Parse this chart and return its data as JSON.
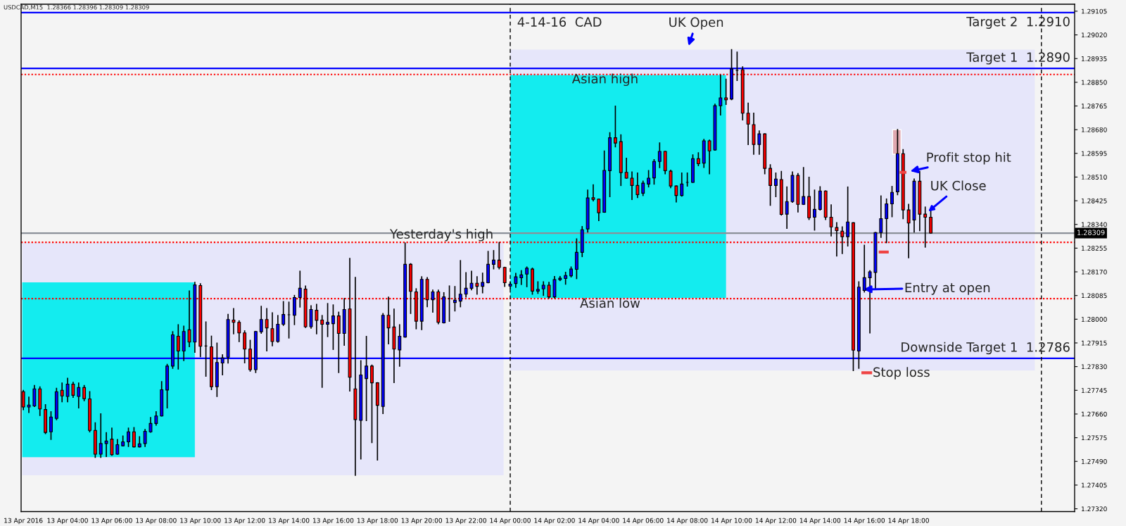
{
  "chart_data": {
    "type": "candlestick",
    "xlim": [
      "2016-04-13T01:54",
      "2016-04-15T01:30"
    ],
    "ylim": [
      1.2731,
      1.2913
    ],
    "xticks": [
      {
        "value": "2016-04-13T02:00",
        "label": "13 Apr 2016"
      },
      {
        "value": "2016-04-13T04:00",
        "label": "13 Apr 04:00"
      },
      {
        "value": "2016-04-13T06:00",
        "label": "13 Apr 06:00"
      },
      {
        "value": "2016-04-13T08:00",
        "label": "13 Apr 08:00"
      },
      {
        "value": "2016-04-13T10:00",
        "label": "13 Apr 10:00"
      },
      {
        "value": "2016-04-13T12:00",
        "label": "13 Apr 12:00"
      },
      {
        "value": "2016-04-13T14:00",
        "label": "13 Apr 14:00"
      },
      {
        "value": "2016-04-13T16:00",
        "label": "13 Apr 16:00"
      },
      {
        "value": "2016-04-13T18:00",
        "label": "13 Apr 18:00"
      },
      {
        "value": "2016-04-13T20:00",
        "label": "13 Apr 20:00"
      },
      {
        "value": "2016-04-13T22:00",
        "label": "13 Apr 22:00"
      },
      {
        "value": "2016-04-14T00:00",
        "label": "14 Apr 00:00"
      },
      {
        "value": "2016-04-14T02:00",
        "label": "14 Apr 02:00"
      },
      {
        "value": "2016-04-14T04:00",
        "label": "14 Apr 04:00"
      },
      {
        "value": "2016-04-14T06:00",
        "label": "14 Apr 06:00"
      },
      {
        "value": "2016-04-14T08:00",
        "label": "14 Apr 08:00"
      },
      {
        "value": "2016-04-14T10:00",
        "label": "14 Apr 10:00"
      },
      {
        "value": "2016-04-14T12:00",
        "label": "14 Apr 12:00"
      },
      {
        "value": "2016-04-14T14:00",
        "label": "14 Apr 14:00"
      },
      {
        "value": "2016-04-14T16:00",
        "label": "14 Apr 16:00"
      },
      {
        "value": "2016-04-14T18:00",
        "label": "14 Apr 18:00"
      }
    ],
    "yticks": [
      {
        "value": 1.2732,
        "label": "1.27320"
      },
      {
        "value": 1.27405,
        "label": "1.27405"
      },
      {
        "value": 1.2749,
        "label": "1.27490"
      },
      {
        "value": 1.27575,
        "label": "1.27575"
      },
      {
        "value": 1.2766,
        "label": "1.27660"
      },
      {
        "value": 1.27745,
        "label": "1.27745"
      },
      {
        "value": 1.2783,
        "label": "1.27830"
      },
      {
        "value": 1.27915,
        "label": "1.27915"
      },
      {
        "value": 1.28,
        "label": "1.28000"
      },
      {
        "value": 1.28085,
        "label": "1.28085"
      },
      {
        "value": 1.2817,
        "label": "1.28170"
      },
      {
        "value": 1.28255,
        "label": "1.28255"
      },
      {
        "value": 1.2834,
        "label": "1.28340"
      },
      {
        "value": 1.28425,
        "label": "1.28425"
      },
      {
        "value": 1.2851,
        "label": "1.28510"
      },
      {
        "value": 1.28595,
        "label": "1.28595"
      },
      {
        "value": 1.2868,
        "label": "1.28680"
      },
      {
        "value": 1.28765,
        "label": "1.28765"
      },
      {
        "value": 1.2885,
        "label": "1.28850"
      },
      {
        "value": 1.28935,
        "label": "1.28935"
      },
      {
        "value": 1.2902,
        "label": "1.29020"
      },
      {
        "value": 1.29105,
        "label": "1.29105"
      }
    ],
    "series": [
      {
        "x": [
          "2016-04-13T02:00",
          "2016-04-13T02:15",
          "2016-04-13T02:30",
          "2016-04-13T02:45",
          "2016-04-13T03:00",
          "2016-04-13T03:15",
          "2016-04-13T03:30",
          "2016-04-13T03:45",
          "2016-04-13T04:00",
          "2016-04-13T04:15",
          "2016-04-13T04:30",
          "2016-04-13T04:45",
          "2016-04-13T05:00",
          "2016-04-13T05:15",
          "2016-04-13T05:30",
          "2016-04-13T05:45",
          "2016-04-13T06:00",
          "2016-04-13T06:15",
          "2016-04-13T06:30",
          "2016-04-13T06:45",
          "2016-04-13T07:00",
          "2016-04-13T07:15",
          "2016-04-13T07:30",
          "2016-04-13T07:45",
          "2016-04-13T08:00",
          "2016-04-13T08:15",
          "2016-04-13T08:30",
          "2016-04-13T08:45",
          "2016-04-13T09:00",
          "2016-04-13T09:15",
          "2016-04-13T09:30",
          "2016-04-13T09:45",
          "2016-04-13T10:00",
          "2016-04-13T10:15",
          "2016-04-13T10:30",
          "2016-04-13T10:45",
          "2016-04-13T11:00",
          "2016-04-13T11:15",
          "2016-04-13T11:30",
          "2016-04-13T11:45",
          "2016-04-13T12:00",
          "2016-04-13T12:15",
          "2016-04-13T12:30",
          "2016-04-13T12:45",
          "2016-04-13T13:00",
          "2016-04-13T13:15",
          "2016-04-13T13:30",
          "2016-04-13T13:45",
          "2016-04-13T14:00",
          "2016-04-13T14:15",
          "2016-04-13T14:30",
          "2016-04-13T14:45",
          "2016-04-13T15:00",
          "2016-04-13T15:15",
          "2016-04-13T15:30",
          "2016-04-13T15:45",
          "2016-04-13T16:00",
          "2016-04-13T16:15",
          "2016-04-13T16:30",
          "2016-04-13T16:45",
          "2016-04-13T17:00",
          "2016-04-13T17:15",
          "2016-04-13T17:30",
          "2016-04-13T17:45",
          "2016-04-13T18:00",
          "2016-04-13T18:15",
          "2016-04-13T18:30",
          "2016-04-13T18:45",
          "2016-04-13T19:00",
          "2016-04-13T19:15",
          "2016-04-13T19:30",
          "2016-04-13T19:45",
          "2016-04-13T20:00",
          "2016-04-13T20:15",
          "2016-04-13T20:30",
          "2016-04-13T20:45",
          "2016-04-13T21:00",
          "2016-04-13T21:15",
          "2016-04-13T21:30",
          "2016-04-13T21:45",
          "2016-04-13T22:00",
          "2016-04-13T22:15",
          "2016-04-13T22:30",
          "2016-04-13T22:45",
          "2016-04-13T23:00",
          "2016-04-13T23:15",
          "2016-04-13T23:30",
          "2016-04-13T23:45",
          "2016-04-14T00:00",
          "2016-04-14T00:15",
          "2016-04-14T00:30",
          "2016-04-14T00:45",
          "2016-04-14T01:00",
          "2016-04-14T01:15",
          "2016-04-14T01:30",
          "2016-04-14T01:45",
          "2016-04-14T02:00",
          "2016-04-14T02:15",
          "2016-04-14T02:30",
          "2016-04-14T02:45",
          "2016-04-14T03:00",
          "2016-04-14T03:15",
          "2016-04-14T03:30",
          "2016-04-14T03:45",
          "2016-04-14T04:00",
          "2016-04-14T04:15",
          "2016-04-14T04:30",
          "2016-04-14T04:45",
          "2016-04-14T05:00",
          "2016-04-14T05:15",
          "2016-04-14T05:30",
          "2016-04-14T05:45",
          "2016-04-14T06:00",
          "2016-04-14T06:15",
          "2016-04-14T06:30",
          "2016-04-14T06:45",
          "2016-04-14T07:00",
          "2016-04-14T07:15",
          "2016-04-14T07:30",
          "2016-04-14T07:45",
          "2016-04-14T08:00",
          "2016-04-14T08:15",
          "2016-04-14T08:30",
          "2016-04-14T08:45",
          "2016-04-14T09:00",
          "2016-04-14T09:15",
          "2016-04-14T09:30",
          "2016-04-14T09:45",
          "2016-04-14T10:00",
          "2016-04-14T10:15",
          "2016-04-14T10:30",
          "2016-04-14T10:45",
          "2016-04-14T11:00",
          "2016-04-14T11:15",
          "2016-04-14T11:30",
          "2016-04-14T11:45",
          "2016-04-14T12:00",
          "2016-04-14T12:15",
          "2016-04-14T12:30",
          "2016-04-14T12:45",
          "2016-04-14T13:00",
          "2016-04-14T13:15",
          "2016-04-14T13:30",
          "2016-04-14T13:45",
          "2016-04-14T14:00",
          "2016-04-14T14:15",
          "2016-04-14T14:30",
          "2016-04-14T14:45",
          "2016-04-14T15:00",
          "2016-04-14T15:15",
          "2016-04-14T15:30",
          "2016-04-14T15:45",
          "2016-04-14T16:00",
          "2016-04-14T16:15",
          "2016-04-14T16:30",
          "2016-04-14T16:45",
          "2016-04-14T17:00",
          "2016-04-14T17:15",
          "2016-04-14T17:30",
          "2016-04-14T17:45",
          "2016-04-14T18:00",
          "2016-04-14T18:15",
          "2016-04-14T18:30",
          "2016-04-14T18:45",
          "2016-04-14T19:00"
        ],
        "ohlc": [
          [
            1.2774,
            1.27744,
            1.27676,
            1.27685
          ],
          [
            1.27685,
            1.2772,
            1.27666,
            1.27692
          ],
          [
            1.27689,
            1.27762,
            1.27687,
            1.2775
          ],
          [
            1.2775,
            1.27757,
            1.27655,
            1.27678
          ],
          [
            1.27676,
            1.27693,
            1.2759,
            1.27594
          ],
          [
            1.27596,
            1.27668,
            1.27569,
            1.27649
          ],
          [
            1.27644,
            1.27752,
            1.2764,
            1.2774
          ],
          [
            1.27745,
            1.27771,
            1.27704,
            1.27725
          ],
          [
            1.27723,
            1.27788,
            1.27704,
            1.27767
          ],
          [
            1.27767,
            1.27773,
            1.2772,
            1.27727
          ],
          [
            1.27723,
            1.27771,
            1.27682,
            1.27755
          ],
          [
            1.27755,
            1.27762,
            1.27708,
            1.27715
          ],
          [
            1.27714,
            1.2774,
            1.27596,
            1.27601
          ],
          [
            1.27601,
            1.27628,
            1.27505,
            1.27516
          ],
          [
            1.27516,
            1.2766,
            1.27505,
            1.27554
          ],
          [
            1.27554,
            1.27593,
            1.27508,
            1.27563
          ],
          [
            1.2757,
            1.27609,
            1.27512,
            1.27514
          ],
          [
            1.27516,
            1.27568,
            1.27516,
            1.2755
          ],
          [
            1.27546,
            1.27581,
            1.27546,
            1.2756
          ],
          [
            1.2756,
            1.27609,
            1.27544,
            1.27596
          ],
          [
            1.27596,
            1.27611,
            1.27542,
            1.27542
          ],
          [
            1.27542,
            1.27578,
            1.27542,
            1.27553
          ],
          [
            1.27554,
            1.27604,
            1.27544,
            1.27598
          ],
          [
            1.27596,
            1.27647,
            1.27595,
            1.27626
          ],
          [
            1.27626,
            1.27668,
            1.2762,
            1.27653
          ],
          [
            1.27653,
            1.27776,
            1.27653,
            1.27747
          ],
          [
            1.27746,
            1.27838,
            1.27682,
            1.27832
          ],
          [
            1.27832,
            1.27955,
            1.27824,
            1.27944
          ],
          [
            1.27939,
            1.2798,
            1.27822,
            1.27886
          ],
          [
            1.27886,
            1.27975,
            1.27852,
            1.27956
          ],
          [
            1.27962,
            1.28101,
            1.27902,
            1.27918
          ],
          [
            1.27918,
            1.28132,
            1.27882,
            1.28123
          ],
          [
            1.28121,
            1.28127,
            1.27866,
            1.27903
          ],
          [
            1.27904,
            1.2799,
            1.27796,
            1.27904
          ],
          [
            1.27901,
            1.27939,
            1.27748,
            1.27758
          ],
          [
            1.27758,
            1.27914,
            1.27723,
            1.27845
          ],
          [
            1.27843,
            1.27872,
            1.27801,
            1.27861
          ],
          [
            1.27864,
            1.28017,
            1.27843,
            1.27999
          ],
          [
            1.27997,
            1.28038,
            1.27948,
            1.27989
          ],
          [
            1.27989,
            1.27994,
            1.2792,
            1.27951
          ],
          [
            1.27951,
            1.27958,
            1.27844,
            1.27893
          ],
          [
            1.27893,
            1.27924,
            1.27814,
            1.27819
          ],
          [
            1.27819,
            1.27956,
            1.27809,
            1.27956
          ],
          [
            1.27955,
            1.28046,
            1.2795,
            1.27999
          ],
          [
            1.27999,
            1.28038,
            1.27887,
            1.27969
          ],
          [
            1.27966,
            1.28023,
            1.27905,
            1.2792
          ],
          [
            1.2792,
            1.28013,
            1.27918,
            1.27982
          ],
          [
            1.27982,
            1.28063,
            1.27978,
            1.28017
          ],
          [
            1.28016,
            1.28061,
            1.27933,
            1.28016
          ],
          [
            1.28014,
            1.28085,
            1.27981,
            1.28078
          ],
          [
            1.28078,
            1.28172,
            1.28044,
            1.28111
          ],
          [
            1.28108,
            1.28119,
            1.27971,
            1.27973
          ],
          [
            1.27973,
            1.28048,
            1.27968,
            1.28035
          ],
          [
            1.28032,
            1.28053,
            1.27948,
            1.27996
          ],
          [
            1.27997,
            1.28013,
            1.27756,
            1.27982
          ],
          [
            1.27982,
            1.28056,
            1.27938,
            1.27989
          ],
          [
            1.27984,
            1.28051,
            1.27892,
            1.28012
          ],
          [
            1.28012,
            1.28025,
            1.27809,
            1.27949
          ],
          [
            1.27949,
            1.28074,
            1.27907,
            1.28035
          ],
          [
            1.28037,
            1.28218,
            1.27743,
            1.27792
          ],
          [
            1.2775,
            1.2815,
            1.2744,
            1.2764
          ],
          [
            1.27637,
            1.27851,
            1.27499,
            1.278
          ],
          [
            1.27787,
            1.27938,
            1.27637,
            1.27832
          ],
          [
            1.27832,
            1.27835,
            1.27558,
            1.27772
          ],
          [
            1.27772,
            1.27772,
            1.27495,
            1.27691
          ],
          [
            1.27687,
            1.2802,
            1.27662,
            1.28014
          ],
          [
            1.28014,
            1.28079,
            1.27912,
            1.27969
          ],
          [
            1.27972,
            1.28036,
            1.27773,
            1.27893
          ],
          [
            1.2789,
            1.2798,
            1.27832,
            1.27939
          ],
          [
            1.27936,
            1.28273,
            1.27936,
            1.28197
          ],
          [
            1.28197,
            1.28199,
            1.28021,
            1.281
          ],
          [
            1.28098,
            1.28109,
            1.27966,
            1.27993
          ],
          [
            1.27993,
            1.28152,
            1.27963,
            1.28143
          ],
          [
            1.28143,
            1.28149,
            1.28045,
            1.2807
          ],
          [
            1.2807,
            1.28104,
            1.28026,
            1.28098
          ],
          [
            1.28098,
            1.28104,
            1.27984,
            1.27989
          ],
          [
            1.27987,
            1.28095,
            1.27987,
            1.2808
          ],
          [
            1.28074,
            1.28119,
            1.27993,
            1.28074
          ],
          [
            1.2806,
            1.28117,
            1.2803,
            1.28068
          ],
          [
            1.28065,
            1.2821,
            1.28045,
            1.2809
          ],
          [
            1.2809,
            1.28167,
            1.2808,
            1.28111
          ],
          [
            1.28111,
            1.28172,
            1.28106,
            1.28129
          ],
          [
            1.28129,
            1.28152,
            1.2809,
            1.28118
          ],
          [
            1.28118,
            1.28165,
            1.28095,
            1.28132
          ],
          [
            1.28131,
            1.28243,
            1.28131,
            1.28197
          ],
          [
            1.28197,
            1.28246,
            1.28181,
            1.28212
          ],
          [
            1.28212,
            1.28275,
            1.28181,
            1.28186
          ],
          [
            1.28186,
            1.28186,
            1.28118,
            1.28131
          ],
          [
            1.28119,
            1.28134,
            1.28111,
            1.28126
          ],
          [
            1.28128,
            1.28164,
            1.28115,
            1.28152
          ],
          [
            1.28149,
            1.28174,
            1.28125,
            1.28159
          ],
          [
            1.28162,
            1.28187,
            1.28117,
            1.28183
          ],
          [
            1.2818,
            1.28183,
            1.2809,
            1.28101
          ],
          [
            1.28101,
            1.28134,
            1.28093,
            1.28107
          ],
          [
            1.28109,
            1.28134,
            1.28086,
            1.28122
          ],
          [
            1.28122,
            1.28132,
            1.28076,
            1.2808
          ],
          [
            1.2808,
            1.28153,
            1.28077,
            1.28142
          ],
          [
            1.28142,
            1.28153,
            1.28139,
            1.28147
          ],
          [
            1.28146,
            1.28168,
            1.28126,
            1.28157
          ],
          [
            1.28156,
            1.28187,
            1.28152,
            1.2818
          ],
          [
            1.28179,
            1.28288,
            1.28146,
            1.2824
          ],
          [
            1.2824,
            1.28332,
            1.28225,
            1.28321
          ],
          [
            1.28324,
            1.28463,
            1.28313,
            1.28435
          ],
          [
            1.28436,
            1.28482,
            1.28425,
            1.2843
          ],
          [
            1.28431,
            1.28431,
            1.28354,
            1.28382
          ],
          [
            1.28384,
            1.28603,
            1.28384,
            1.28534
          ],
          [
            1.28533,
            1.28669,
            1.2844,
            1.28651
          ],
          [
            1.28651,
            1.28764,
            1.28619,
            1.28632
          ],
          [
            1.28637,
            1.28661,
            1.2848,
            1.28526
          ],
          [
            1.28527,
            1.28577,
            1.28506,
            1.28506
          ],
          [
            1.28506,
            1.28528,
            1.2843,
            1.2848
          ],
          [
            1.2848,
            1.28524,
            1.28437,
            1.28447
          ],
          [
            1.28452,
            1.28495,
            1.28444,
            1.28488
          ],
          [
            1.28485,
            1.28533,
            1.28475,
            1.28506
          ],
          [
            1.28507,
            1.28572,
            1.28485,
            1.28566
          ],
          [
            1.28566,
            1.28632,
            1.28544,
            1.28602
          ],
          [
            1.28602,
            1.28602,
            1.28522,
            1.28533
          ],
          [
            1.28531,
            1.28534,
            1.28472,
            1.28478
          ],
          [
            1.28478,
            1.28478,
            1.28421,
            1.28444
          ],
          [
            1.28444,
            1.28524,
            1.28442,
            1.28485
          ],
          [
            1.28491,
            1.28524,
            1.28478,
            1.28491
          ],
          [
            1.28491,
            1.28589,
            1.28491,
            1.28576
          ],
          [
            1.28576,
            1.28597,
            1.28551,
            1.28558
          ],
          [
            1.2856,
            1.28645,
            1.28545,
            1.2864
          ],
          [
            1.2864,
            1.28642,
            1.28522,
            1.28604
          ],
          [
            1.28607,
            1.28771,
            1.28607,
            1.28766
          ],
          [
            1.28766,
            1.28876,
            1.28733,
            1.28794
          ],
          [
            1.28794,
            1.28861,
            1.28771,
            1.28787
          ],
          [
            1.2879,
            1.28967,
            1.28788,
            1.28898
          ],
          [
            1.28893,
            1.28958,
            1.28857,
            1.28893
          ],
          [
            1.28895,
            1.28905,
            1.28715,
            1.28739
          ],
          [
            1.28739,
            1.28775,
            1.28627,
            1.287
          ],
          [
            1.28698,
            1.28739,
            1.28592,
            1.28627
          ],
          [
            1.28627,
            1.28675,
            1.28592,
            1.28665
          ],
          [
            1.28665,
            1.28665,
            1.28522,
            1.28541
          ],
          [
            1.28541,
            1.28554,
            1.28409,
            1.2848
          ],
          [
            1.2848,
            1.28524,
            1.2844,
            1.28503
          ],
          [
            1.28501,
            1.2853,
            1.28374,
            1.28376
          ],
          [
            1.28377,
            1.28474,
            1.28326,
            1.28422
          ],
          [
            1.28422,
            1.28528,
            1.2842,
            1.28516
          ],
          [
            1.28516,
            1.28522,
            1.28385,
            1.28412
          ],
          [
            1.28412,
            1.28544,
            1.28412,
            1.2844
          ],
          [
            1.2844,
            1.28509,
            1.28358,
            1.28364
          ],
          [
            1.28366,
            1.28463,
            1.2832,
            1.28394
          ],
          [
            1.28394,
            1.28475,
            1.28392,
            1.2846
          ],
          [
            1.2846,
            1.2846,
            1.28358,
            1.28366
          ],
          [
            1.28366,
            1.2841,
            1.28299,
            1.28331
          ],
          [
            1.28329,
            1.28346,
            1.28227,
            1.28318
          ],
          [
            1.28316,
            1.28331,
            1.28236,
            1.28296
          ],
          [
            1.28296,
            1.28474,
            1.28263,
            1.28349
          ],
          [
            1.28346,
            1.28346,
            1.27816,
            1.27889
          ],
          [
            1.27886,
            1.28134,
            1.27824,
            1.28115
          ],
          [
            1.28103,
            1.28265,
            1.28098,
            1.28149
          ],
          [
            1.28149,
            1.28174,
            1.27951,
            1.2817
          ],
          [
            1.28168,
            1.28311,
            1.28111,
            1.28311
          ],
          [
            1.28311,
            1.28442,
            1.28294,
            1.28361
          ],
          [
            1.28361,
            1.28431,
            1.28275,
            1.28414
          ],
          [
            1.28414,
            1.28476,
            1.28368,
            1.28455
          ],
          [
            1.28457,
            1.2868,
            1.28447,
            1.28594
          ],
          [
            1.28594,
            1.28608,
            1.28361,
            1.28392
          ],
          [
            1.28392,
            1.28412,
            1.28221,
            1.28345
          ],
          [
            1.28356,
            1.28503,
            1.28313,
            1.28495
          ],
          [
            1.28495,
            1.2853,
            1.28318,
            1.28377
          ],
          [
            1.28377,
            1.28402,
            1.28259,
            1.28366
          ],
          [
            1.28366,
            1.28396,
            1.28309,
            1.28309
          ]
        ],
        "colors": [
          "#ff0000",
          "#0000ff",
          "#0000ff",
          "#ff0000",
          "#ff0000",
          "#0000ff",
          "#0000ff",
          "#ff0000",
          "#0000ff",
          "#ff0000",
          "#0000ff",
          "#ff0000",
          "#ff0000",
          "#ff0000",
          "#0000ff",
          "#0000ff",
          "#ff0000",
          "#0000ff",
          "#0000ff",
          "#0000ff",
          "#ff0000",
          "#0000ff",
          "#0000ff",
          "#0000ff",
          "#0000ff",
          "#0000ff",
          "#0000ff",
          "#0000ff",
          "#ff0000",
          "#0000ff",
          "#ff0000",
          "#0000ff",
          "#ff0000",
          "#000000",
          "#ff0000",
          "#0000ff",
          "#0000ff",
          "#0000ff",
          "#ff0000",
          "#ff0000",
          "#ff0000",
          "#ff0000",
          "#0000ff",
          "#0000ff",
          "#ff0000",
          "#ff0000",
          "#0000ff",
          "#0000ff",
          "#000000",
          "#0000ff",
          "#0000ff",
          "#ff0000",
          "#0000ff",
          "#ff0000",
          "#ff0000",
          "#0000ff",
          "#0000ff",
          "#ff0000",
          "#0000ff",
          "#ff0000",
          "#ff0000",
          "#0000ff",
          "#0000ff",
          "#ff0000",
          "#ff0000",
          "#0000ff",
          "#ff0000",
          "#ff0000",
          "#0000ff",
          "#0000ff",
          "#ff0000",
          "#ff0000",
          "#0000ff",
          "#ff0000",
          "#0000ff",
          "#ff0000",
          "#0000ff",
          "#000000",
          "#0000ff",
          "#0000ff",
          "#0000ff",
          "#0000ff",
          "#ff0000",
          "#0000ff",
          "#0000ff",
          "#0000ff",
          "#ff0000",
          "#ff0000",
          "#0000ff",
          "#0000ff",
          "#0000ff",
          "#0000ff",
          "#ff0000",
          "#0000ff",
          "#0000ff",
          "#ff0000",
          "#0000ff",
          "#0000ff",
          "#0000ff",
          "#0000ff",
          "#0000ff",
          "#0000ff",
          "#0000ff",
          "#ff0000",
          "#ff0000",
          "#0000ff",
          "#0000ff",
          "#ff0000",
          "#ff0000",
          "#ff0000",
          "#ff0000",
          "#ff0000",
          "#0000ff",
          "#0000ff",
          "#0000ff",
          "#0000ff",
          "#ff0000",
          "#ff0000",
          "#ff0000",
          "#0000ff",
          "#000000",
          "#0000ff",
          "#ff0000",
          "#0000ff",
          "#ff0000",
          "#0000ff",
          "#0000ff",
          "#ff0000",
          "#0000ff",
          "#000000",
          "#ff0000",
          "#ff0000",
          "#ff0000",
          "#0000ff",
          "#ff0000",
          "#ff0000",
          "#0000ff",
          "#ff0000",
          "#0000ff",
          "#0000ff",
          "#ff0000",
          "#0000ff",
          "#ff0000",
          "#0000ff",
          "#0000ff",
          "#ff0000",
          "#ff0000",
          "#ff0000",
          "#ff0000",
          "#0000ff",
          "#ff0000",
          "#0000ff",
          "#0000ff",
          "#0000ff",
          "#0000ff",
          "#0000ff",
          "#0000ff",
          "#0000ff",
          "#0000ff",
          "#ff0000",
          "#ff0000",
          "#0000ff",
          "#ff0000",
          "#ff0000",
          "#ff0000"
        ]
      },
      {
        "type": "line",
        "x": [
          "2016-04-14T15:52",
          "2016-04-14T16:21"
        ],
        "values": [
          1.27808,
          1.27808
        ],
        "color": "#ef4444"
      },
      {
        "type": "line",
        "x": [
          "2016-04-14T16:39",
          "2016-04-14T17:06"
        ],
        "values": [
          1.28241,
          1.28241
        ],
        "color": "#ef4444"
      },
      {
        "type": "line",
        "x": [
          "2016-04-14T17:36",
          "2016-04-14T17:54"
        ],
        "values": [
          1.28527,
          1.28527
        ],
        "color": "#ef4444"
      },
      {
        "type": "bar",
        "x": [
          "2016-04-14T17:28"
        ],
        "base": [
          1.28592
        ],
        "values": [
          0.00088
        ],
        "color": "#e0a8b0"
      }
    ],
    "bands": [
      {
        "axis": "x",
        "from": "2016-04-13T01:57",
        "to": "2016-04-13T23:42",
        "color": "#e6e6fa"
      },
      {
        "axis": "x",
        "from": "2016-04-14T00:00",
        "to": "2016-04-14T23:42",
        "color": "#e6e6fa"
      },
      {
        "axis": "x",
        "from": "2016-04-13T01:57",
        "to": "2016-04-13T09:45",
        "color": "#13ecef"
      },
      {
        "axis": "x",
        "from": "2016-04-14T00:00",
        "to": "2016-04-14T09:45",
        "color": "#13ecef"
      }
    ],
    "ref_lines": [
      {
        "axis": "y",
        "value": 1.291,
        "label": "Target 2  1.2910",
        "color": "#0000ff",
        "line_style": "solid"
      },
      {
        "axis": "y",
        "value": 1.289,
        "label": "Target 1  1.2890",
        "color": "#0000ff",
        "line_style": "solid"
      },
      {
        "axis": "y",
        "value": 1.2786,
        "label": "Downside Target 1  1.2786",
        "color": "#0000ff",
        "line_style": "solid"
      },
      {
        "axis": "y",
        "value": 1.28309,
        "label": "1.28309",
        "color": "#8a9098",
        "line_style": "solid"
      },
      {
        "axis": "y",
        "value": 1.28878,
        "color": "#ff0000",
        "line_style": "dotted"
      },
      {
        "axis": "y",
        "value": 1.28276,
        "color": "#ff0000",
        "line_style": "dotted"
      },
      {
        "axis": "y",
        "value": 1.28074,
        "color": "#ff0000",
        "line_style": "dotted"
      },
      {
        "axis": "x",
        "value": "2016-04-14T00:00",
        "label": "4-14-16  CAD",
        "color": "#000000",
        "line_style": "dashed"
      },
      {
        "axis": "x",
        "value": "2016-04-15T00:00",
        "color": "#000000",
        "line_style": "dashed"
      }
    ],
    "annotations": [
      "USDCAD,M15  1.28366 1.28396 1.28309 1.28309",
      {
        "text": "UK Open",
        "x": "2016-04-14T08:00",
        "y": 1.28967
      },
      {
        "text": "Profit stop hit",
        "x": "2016-04-14T17:54",
        "y": 1.28528
      },
      {
        "text": "UK Close",
        "x": "2016-04-14T18:45",
        "y": 1.28377
      },
      "Entry at open",
      "Stop loss",
      "Asian high",
      "Asian low",
      {
        "text": "Yesterday's high",
        "x": "2016-04-13T20:54",
        "y": 1.28302
      }
    ]
  }
}
